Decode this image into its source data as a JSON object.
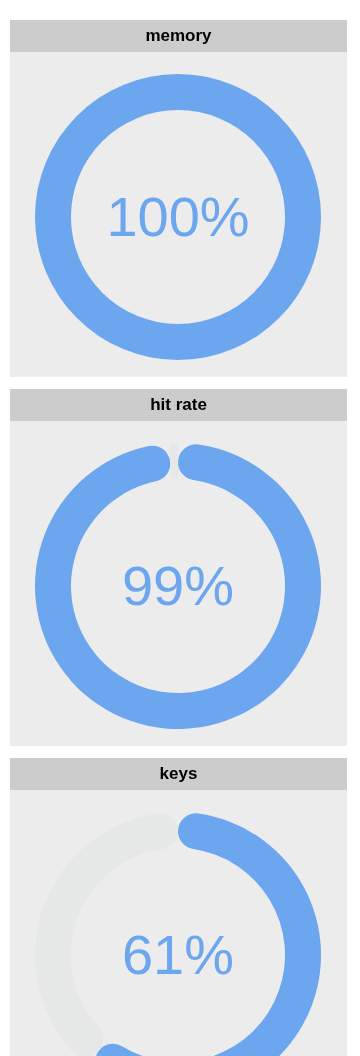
{
  "chart_data": [
    {
      "type": "donut",
      "title": "memory",
      "categories": [
        null,
        null
      ],
      "values": [
        100,
        0
      ],
      "colors": [
        "#6ca6ee",
        "#e6e8e8"
      ],
      "annotations": [
        "100%"
      ]
    },
    {
      "type": "donut",
      "title": "hit rate",
      "categories": [
        null,
        null
      ],
      "values": [
        99,
        1
      ],
      "colors": [
        "#6ca6ee",
        "#e6e8e8"
      ],
      "annotations": [
        "99%"
      ]
    },
    {
      "type": "donut",
      "title": "keys",
      "categories": [
        null,
        null
      ],
      "values": [
        61,
        39
      ],
      "colors": [
        "#6ca6ee",
        "#e6e8e8"
      ],
      "annotations": [
        "61%"
      ]
    }
  ]
}
